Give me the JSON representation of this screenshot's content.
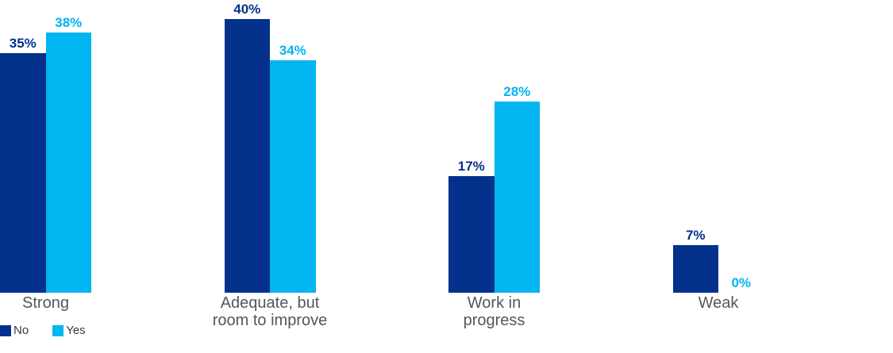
{
  "chart_data": {
    "type": "bar",
    "categories": [
      "Strong",
      "Adequate, but\nroom to improve",
      "Work in\nprogress",
      "Weak"
    ],
    "series": [
      {
        "name": "No",
        "color": "#04318c",
        "values": [
          35,
          40,
          17,
          7
        ]
      },
      {
        "name": "Yes",
        "color": "#00b5f0",
        "values": [
          38,
          34,
          28,
          0
        ]
      }
    ],
    "value_suffix": "%",
    "ylim": [
      0,
      42
    ],
    "grid": false,
    "axes_visible": false,
    "legend_position": "bottom-left"
  },
  "legend": {
    "items": [
      {
        "label": "No",
        "color": "#04318c"
      },
      {
        "label": "Yes",
        "color": "#00b5f0"
      }
    ]
  },
  "styles": {
    "background": "#ffffff",
    "category_label_color": "#54565a",
    "legend_text_color": "#3b3b3b"
  }
}
